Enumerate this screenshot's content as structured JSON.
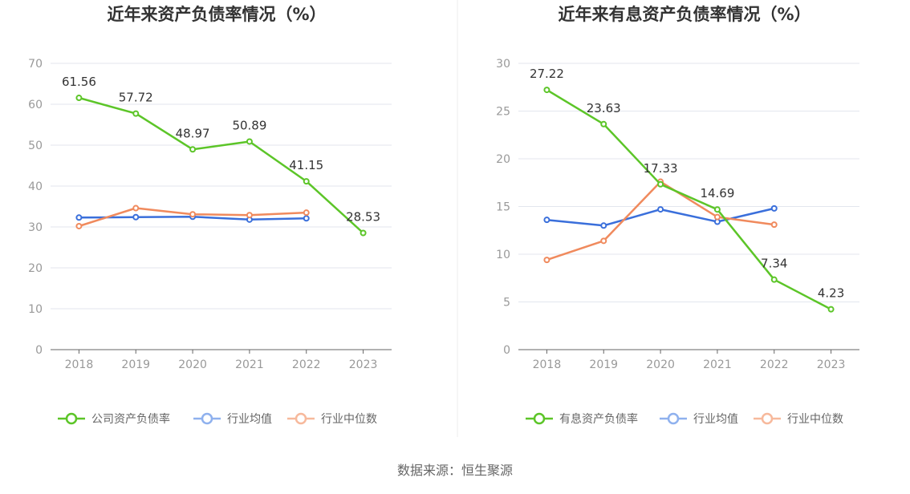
{
  "source_text": "数据来源：恒生聚源",
  "colors": {
    "company": "#5cc528",
    "industry_avg": "#3a6fdb",
    "industry_median": "#f08a5d",
    "legend_avg": "#8fb1ee",
    "legend_median": "#f7b99c"
  },
  "chart_data": [
    {
      "type": "line",
      "title": "近年来资产负债率情况（%）",
      "categories": [
        "2018",
        "2019",
        "2020",
        "2021",
        "2022",
        "2023"
      ],
      "ylim": [
        0,
        70
      ],
      "yticks": [
        0,
        10,
        20,
        30,
        40,
        50,
        60,
        70
      ],
      "grid": true,
      "legend_position": "bottom",
      "series": [
        {
          "name": "公司资产负债率",
          "color": "#5cc528",
          "values": [
            61.56,
            57.72,
            48.97,
            50.89,
            41.15,
            28.53
          ],
          "labels": [
            "61.56",
            "57.72",
            "48.97",
            "50.89",
            "41.15",
            "28.53"
          ]
        },
        {
          "name": "行业均值",
          "color": "#3a6fdb",
          "values": [
            32.3,
            32.4,
            32.5,
            31.8,
            32.1,
            null
          ]
        },
        {
          "name": "行业中位数",
          "color": "#f08a5d",
          "values": [
            30.2,
            34.6,
            33.1,
            32.9,
            33.5,
            null
          ]
        }
      ]
    },
    {
      "type": "line",
      "title": "近年来有息资产负债率情况（%）",
      "categories": [
        "2018",
        "2019",
        "2020",
        "2021",
        "2022",
        "2023"
      ],
      "ylim": [
        0,
        30
      ],
      "yticks": [
        0,
        5,
        10,
        15,
        20,
        25,
        30
      ],
      "grid": true,
      "legend_position": "bottom",
      "series": [
        {
          "name": "有息资产负债率",
          "color": "#5cc528",
          "values": [
            27.22,
            23.63,
            17.33,
            14.69,
            7.34,
            4.23
          ],
          "labels": [
            "27.22",
            "23.63",
            "17.33",
            "14.69",
            "7.34",
            "4.23"
          ]
        },
        {
          "name": "行业均值",
          "color": "#3a6fdb",
          "values": [
            13.6,
            13.0,
            14.7,
            13.4,
            14.8,
            null
          ]
        },
        {
          "name": "行业中位数",
          "color": "#f08a5d",
          "values": [
            9.4,
            11.4,
            17.6,
            13.9,
            13.1,
            null
          ]
        }
      ]
    }
  ]
}
